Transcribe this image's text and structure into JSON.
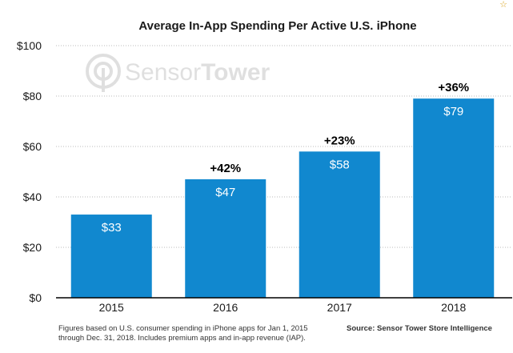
{
  "chart_data": {
    "type": "bar",
    "title": "Average In-App Spending Per Active U.S. iPhone",
    "categories": [
      "2015",
      "2016",
      "2017",
      "2018"
    ],
    "values": [
      33,
      47,
      58,
      79
    ],
    "value_labels": [
      "$33",
      "$47",
      "$58",
      "$79"
    ],
    "growth_labels": [
      "",
      "+42%",
      "+23%",
      "+36%"
    ],
    "xlabel": "",
    "ylabel": "",
    "ylim": [
      0,
      100
    ],
    "yticks": [
      0,
      20,
      40,
      60,
      80,
      100
    ],
    "ytick_labels": [
      "$0",
      "$20",
      "$40",
      "$60",
      "$80",
      "$100"
    ],
    "grid": true,
    "colors": {
      "bar": "#1188cf",
      "grid": "#bbbbbb",
      "axis": "#000000",
      "value_label": "#ffffff",
      "growth_label": "#000000"
    }
  },
  "watermark": {
    "text_light": "Sensor",
    "text_bold": "Tower",
    "icon": "sensor-tower-logo-icon"
  },
  "footnote": {
    "line1": "Figures based on U.S. consumer spending in iPhone apps for Jan 1, 2015",
    "line2": "through Dec. 31, 2018. Includes premium apps and in-app revenue (IAP)."
  },
  "source": "Source: Sensor Tower Store Intelligence",
  "badge_icon": "star-icon"
}
